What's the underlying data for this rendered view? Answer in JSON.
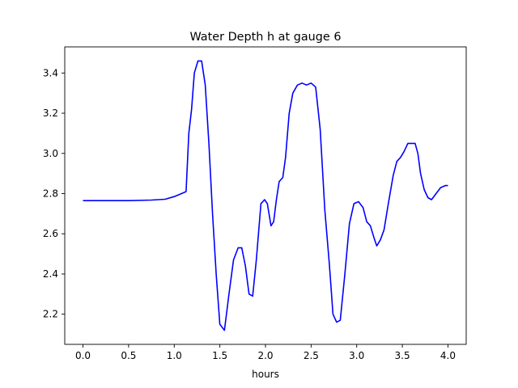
{
  "chart_data": {
    "type": "line",
    "title": "Water Depth h at gauge 6",
    "xlabel": "hours",
    "ylabel": "",
    "xlim": [
      -0.2,
      4.2
    ],
    "ylim": [
      2.05,
      3.53
    ],
    "grid": false,
    "xticks": [
      0.0,
      0.5,
      1.0,
      1.5,
      2.0,
      2.5,
      3.0,
      3.5,
      4.0
    ],
    "xtick_labels": [
      "0.0",
      "0.5",
      "1.0",
      "1.5",
      "2.0",
      "2.5",
      "3.0",
      "3.5",
      "4.0"
    ],
    "yticks": [
      2.2,
      2.4,
      2.6,
      2.8,
      3.0,
      3.2,
      3.4
    ],
    "ytick_labels": [
      "2.2",
      "2.4",
      "2.6",
      "2.8",
      "3.0",
      "3.2",
      "3.4"
    ],
    "series": [
      {
        "color": "#0000ff",
        "x": [
          0.0,
          0.25,
          0.5,
          0.75,
          0.9,
          1.0,
          1.08,
          1.13,
          1.16,
          1.19,
          1.22,
          1.26,
          1.3,
          1.34,
          1.38,
          1.42,
          1.46,
          1.5,
          1.55,
          1.6,
          1.65,
          1.7,
          1.74,
          1.78,
          1.82,
          1.86,
          1.9,
          1.95,
          1.99,
          2.02,
          2.06,
          2.09,
          2.12,
          2.15,
          2.19,
          2.22,
          2.26,
          2.3,
          2.35,
          2.4,
          2.45,
          2.5,
          2.55,
          2.6,
          2.65,
          2.7,
          2.74,
          2.78,
          2.82,
          2.87,
          2.92,
          2.97,
          3.02,
          3.07,
          3.11,
          3.15,
          3.19,
          3.22,
          3.26,
          3.3,
          3.35,
          3.4,
          3.44,
          3.48,
          3.52,
          3.56,
          3.6,
          3.64,
          3.67,
          3.7,
          3.74,
          3.78,
          3.82,
          3.87,
          3.92,
          3.97,
          4.0
        ],
        "y": [
          2.765,
          2.765,
          2.765,
          2.768,
          2.772,
          2.785,
          2.8,
          2.81,
          3.1,
          3.22,
          3.4,
          3.46,
          3.46,
          3.34,
          3.05,
          2.7,
          2.4,
          2.15,
          2.12,
          2.3,
          2.47,
          2.53,
          2.53,
          2.44,
          2.3,
          2.29,
          2.47,
          2.75,
          2.77,
          2.75,
          2.64,
          2.66,
          2.77,
          2.86,
          2.88,
          2.98,
          3.2,
          3.3,
          3.34,
          3.35,
          3.34,
          3.35,
          3.33,
          3.12,
          2.72,
          2.45,
          2.2,
          2.16,
          2.17,
          2.4,
          2.65,
          2.75,
          2.76,
          2.73,
          2.66,
          2.64,
          2.58,
          2.54,
          2.57,
          2.62,
          2.76,
          2.89,
          2.96,
          2.98,
          3.01,
          3.05,
          3.05,
          3.05,
          3.0,
          2.9,
          2.82,
          2.78,
          2.77,
          2.8,
          2.83,
          2.84,
          2.84
        ]
      }
    ]
  }
}
